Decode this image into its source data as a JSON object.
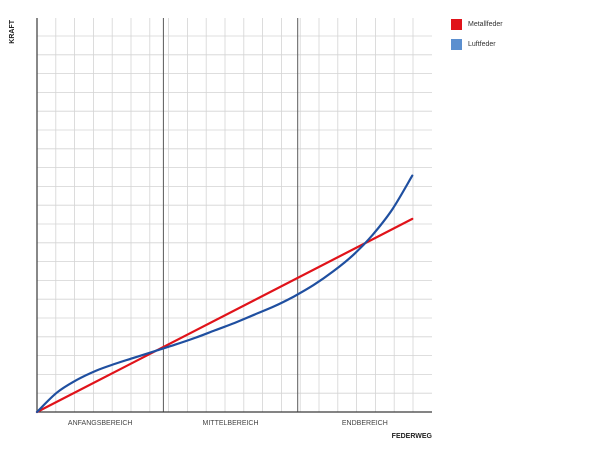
{
  "chart_data": {
    "type": "line",
    "xlabel": "FEDERWEG",
    "ylabel": "KRAFT",
    "xlim": [
      0,
      1
    ],
    "ylim": [
      0,
      1
    ],
    "grid": true,
    "legend_position": "top-right",
    "regions": [
      {
        "label": "ANFANGSBEREICH",
        "from": 0,
        "to": 0.32
      },
      {
        "label": "MITTELBEREICH",
        "from": 0.32,
        "to": 0.66
      },
      {
        "label": "ENDBEREICH",
        "from": 0.66,
        "to": 1
      }
    ],
    "series": [
      {
        "name": "Metallfeder",
        "color": "#e0131a",
        "x": [
          0,
          0.95
        ],
        "y": [
          0,
          0.49
        ]
      },
      {
        "name": "Luftfeder",
        "color": "#1f4fa0",
        "x": [
          0,
          0.05,
          0.1,
          0.15,
          0.2,
          0.25,
          0.3,
          0.35,
          0.4,
          0.45,
          0.5,
          0.55,
          0.6,
          0.65,
          0.7,
          0.75,
          0.8,
          0.85,
          0.9,
          0.95
        ],
        "y": [
          0,
          0.049,
          0.081,
          0.105,
          0.123,
          0.139,
          0.155,
          0.171,
          0.188,
          0.207,
          0.226,
          0.247,
          0.268,
          0.293,
          0.322,
          0.357,
          0.398,
          0.45,
          0.515,
          0.6
        ]
      }
    ]
  },
  "legend": {
    "items": [
      {
        "label": "Metallfeder",
        "color": "#e0131a"
      },
      {
        "label": "Luftfeder",
        "color": "#5b8fcf"
      }
    ]
  }
}
